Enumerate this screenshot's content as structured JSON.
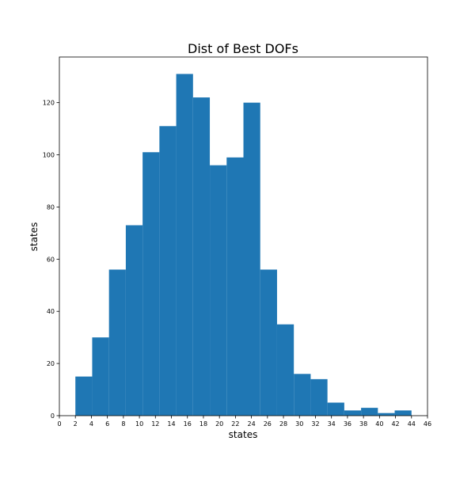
{
  "chart_data": {
    "type": "bar",
    "title": "Dist of Best DOFs",
    "xlabel": "states",
    "ylabel": "states",
    "bins": [
      {
        "x0": 2.0,
        "x1": 4.1,
        "value": 15
      },
      {
        "x0": 4.1,
        "x1": 6.2,
        "value": 30
      },
      {
        "x0": 6.2,
        "x1": 8.3,
        "value": 56
      },
      {
        "x0": 8.3,
        "x1": 10.4,
        "value": 73
      },
      {
        "x0": 10.4,
        "x1": 12.5,
        "value": 101
      },
      {
        "x0": 12.5,
        "x1": 14.6,
        "value": 111
      },
      {
        "x0": 14.6,
        "x1": 16.7,
        "value": 131
      },
      {
        "x0": 16.7,
        "x1": 18.8,
        "value": 122
      },
      {
        "x0": 18.8,
        "x1": 20.9,
        "value": 96
      },
      {
        "x0": 20.9,
        "x1": 23.0,
        "value": 99
      },
      {
        "x0": 23.0,
        "x1": 25.1,
        "value": 120
      },
      {
        "x0": 25.1,
        "x1": 27.2,
        "value": 56
      },
      {
        "x0": 27.2,
        "x1": 29.3,
        "value": 35
      },
      {
        "x0": 29.3,
        "x1": 31.4,
        "value": 16
      },
      {
        "x0": 31.4,
        "x1": 33.5,
        "value": 14
      },
      {
        "x0": 33.5,
        "x1": 35.6,
        "value": 5
      },
      {
        "x0": 35.6,
        "x1": 37.7,
        "value": 2
      },
      {
        "x0": 37.7,
        "x1": 39.8,
        "value": 3
      },
      {
        "x0": 39.8,
        "x1": 41.9,
        "value": 1
      },
      {
        "x0": 41.9,
        "x1": 44.0,
        "value": 2
      }
    ],
    "xticks": [
      0,
      2,
      4,
      6,
      8,
      10,
      12,
      14,
      16,
      18,
      20,
      22,
      24,
      26,
      28,
      30,
      32,
      34,
      36,
      38,
      40,
      42,
      44,
      46
    ],
    "yticks": [
      0,
      20,
      40,
      60,
      80,
      100,
      120
    ],
    "xlim": [
      0,
      46
    ],
    "ylim": [
      0,
      137.5
    ],
    "grid": false,
    "colors": {
      "bar": "#1f77b4",
      "axes": "#000000",
      "background": "#ffffff"
    }
  }
}
